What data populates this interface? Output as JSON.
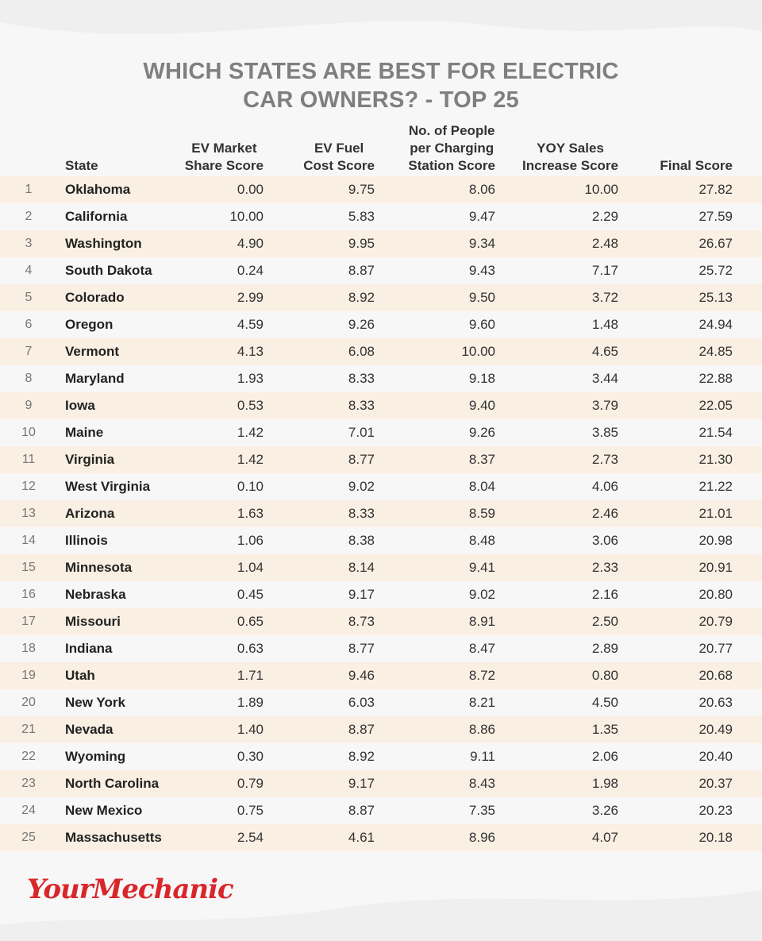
{
  "colors": {
    "title": "#7f7f7f",
    "odd_row": "#f9efe2",
    "even_row": "#f7f7f7",
    "background": "#efefef",
    "logo": "#d9262b"
  },
  "chart_data": {
    "type": "table",
    "title_line1": "WHICH STATES ARE BEST FOR ELECTRIC",
    "title_line2": "CAR OWNERS? - TOP 25",
    "columns": {
      "state": "State",
      "market_share": [
        "EV Market",
        "Share Score"
      ],
      "fuel_cost": [
        "EV Fuel",
        "Cost Score"
      ],
      "charging": [
        "No. of People",
        "per Charging",
        "Station Score"
      ],
      "yoy": [
        "YOY Sales",
        "Increase Score"
      ],
      "final": "Final Score"
    },
    "rows": [
      {
        "rank": "1",
        "state": "Oklahoma",
        "ms": "0.00",
        "fc": "9.75",
        "cs": "8.06",
        "yoy": "10.00",
        "final": "27.82"
      },
      {
        "rank": "2",
        "state": "California",
        "ms": "10.00",
        "fc": "5.83",
        "cs": "9.47",
        "yoy": "2.29",
        "final": "27.59"
      },
      {
        "rank": "3",
        "state": "Washington",
        "ms": "4.90",
        "fc": "9.95",
        "cs": "9.34",
        "yoy": "2.48",
        "final": "26.67"
      },
      {
        "rank": "4",
        "state": "South Dakota",
        "ms": "0.24",
        "fc": "8.87",
        "cs": "9.43",
        "yoy": "7.17",
        "final": "25.72"
      },
      {
        "rank": "5",
        "state": "Colorado",
        "ms": "2.99",
        "fc": "8.92",
        "cs": "9.50",
        "yoy": "3.72",
        "final": "25.13"
      },
      {
        "rank": "6",
        "state": "Oregon",
        "ms": "4.59",
        "fc": "9.26",
        "cs": "9.60",
        "yoy": "1.48",
        "final": "24.94"
      },
      {
        "rank": "7",
        "state": "Vermont",
        "ms": "4.13",
        "fc": "6.08",
        "cs": "10.00",
        "yoy": "4.65",
        "final": "24.85"
      },
      {
        "rank": "8",
        "state": "Maryland",
        "ms": "1.93",
        "fc": "8.33",
        "cs": "9.18",
        "yoy": "3.44",
        "final": "22.88"
      },
      {
        "rank": "9",
        "state": "Iowa",
        "ms": "0.53",
        "fc": "8.33",
        "cs": "9.40",
        "yoy": "3.79",
        "final": "22.05"
      },
      {
        "rank": "10",
        "state": "Maine",
        "ms": "1.42",
        "fc": "7.01",
        "cs": "9.26",
        "yoy": "3.85",
        "final": "21.54"
      },
      {
        "rank": "11",
        "state": "Virginia",
        "ms": "1.42",
        "fc": "8.77",
        "cs": "8.37",
        "yoy": "2.73",
        "final": "21.30"
      },
      {
        "rank": "12",
        "state": "West Virginia",
        "ms": "0.10",
        "fc": "9.02",
        "cs": "8.04",
        "yoy": "4.06",
        "final": "21.22"
      },
      {
        "rank": "13",
        "state": "Arizona",
        "ms": "1.63",
        "fc": "8.33",
        "cs": "8.59",
        "yoy": "2.46",
        "final": "21.01"
      },
      {
        "rank": "14",
        "state": "Illinois",
        "ms": "1.06",
        "fc": "8.38",
        "cs": "8.48",
        "yoy": "3.06",
        "final": "20.98"
      },
      {
        "rank": "15",
        "state": "Minnesota",
        "ms": "1.04",
        "fc": "8.14",
        "cs": "9.41",
        "yoy": "2.33",
        "final": "20.91"
      },
      {
        "rank": "16",
        "state": "Nebraska",
        "ms": "0.45",
        "fc": "9.17",
        "cs": "9.02",
        "yoy": "2.16",
        "final": "20.80"
      },
      {
        "rank": "17",
        "state": "Missouri",
        "ms": "0.65",
        "fc": "8.73",
        "cs": "8.91",
        "yoy": "2.50",
        "final": "20.79"
      },
      {
        "rank": "18",
        "state": "Indiana",
        "ms": "0.63",
        "fc": "8.77",
        "cs": "8.47",
        "yoy": "2.89",
        "final": "20.77"
      },
      {
        "rank": "19",
        "state": "Utah",
        "ms": "1.71",
        "fc": "9.46",
        "cs": "8.72",
        "yoy": "0.80",
        "final": "20.68"
      },
      {
        "rank": "20",
        "state": "New York",
        "ms": "1.89",
        "fc": "6.03",
        "cs": "8.21",
        "yoy": "4.50",
        "final": "20.63"
      },
      {
        "rank": "21",
        "state": "Nevada",
        "ms": "1.40",
        "fc": "8.87",
        "cs": "8.86",
        "yoy": "1.35",
        "final": "20.49"
      },
      {
        "rank": "22",
        "state": "Wyoming",
        "ms": "0.30",
        "fc": "8.92",
        "cs": "9.11",
        "yoy": "2.06",
        "final": "20.40"
      },
      {
        "rank": "23",
        "state": "North Carolina",
        "ms": "0.79",
        "fc": "9.17",
        "cs": "8.43",
        "yoy": "1.98",
        "final": "20.37"
      },
      {
        "rank": "24",
        "state": "New Mexico",
        "ms": "0.75",
        "fc": "8.87",
        "cs": "7.35",
        "yoy": "3.26",
        "final": "20.23"
      },
      {
        "rank": "25",
        "state": "Massachusetts",
        "ms": "2.54",
        "fc": "4.61",
        "cs": "8.96",
        "yoy": "4.07",
        "final": "20.18"
      }
    ]
  },
  "logo": {
    "text": "YourMechanic"
  }
}
